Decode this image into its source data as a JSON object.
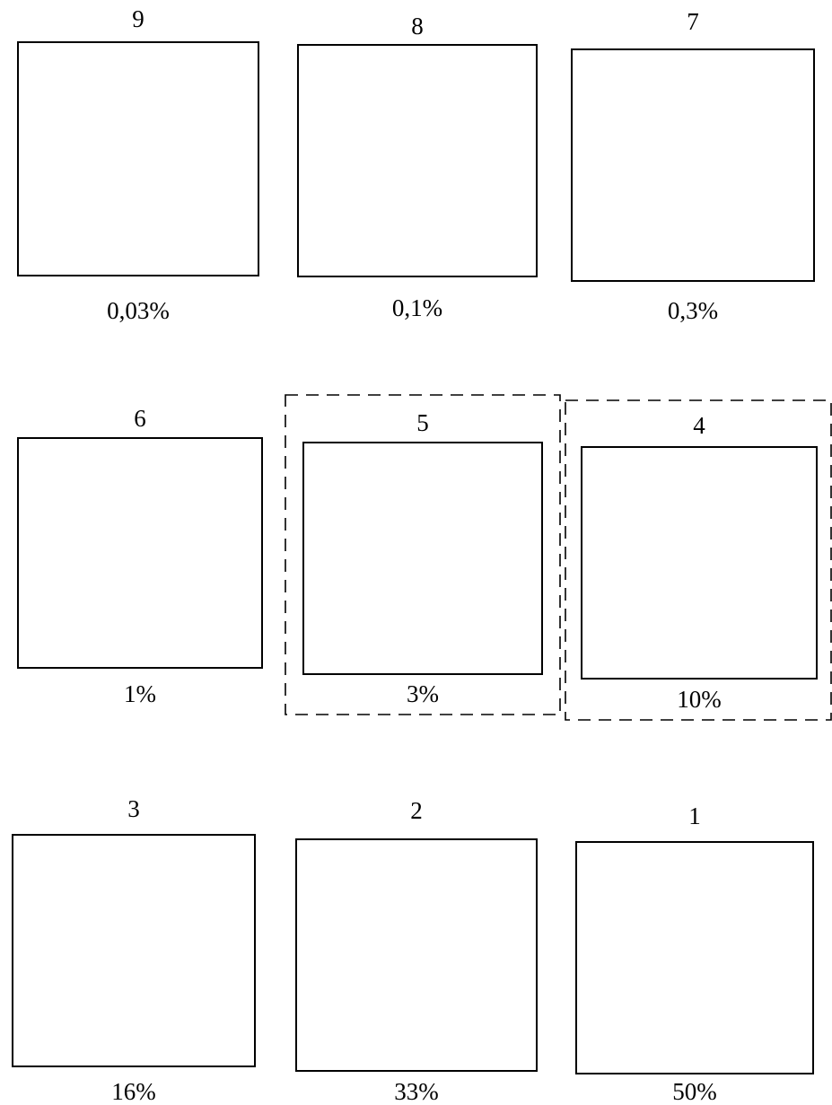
{
  "panels": [
    {
      "number": "9",
      "percent": "0,03%",
      "coverage": 0.0003
    },
    {
      "number": "8",
      "percent": "0,1%",
      "coverage": 0.001
    },
    {
      "number": "7",
      "percent": "0,3%",
      "coverage": 0.003
    },
    {
      "number": "6",
      "percent": "1%",
      "coverage": 0.01
    },
    {
      "number": "5",
      "percent": "3%",
      "coverage": 0.03,
      "highlighted": true
    },
    {
      "number": "4",
      "percent": "10%",
      "coverage": 0.1,
      "highlighted": true
    },
    {
      "number": "3",
      "percent": "16%",
      "coverage": 0.16
    },
    {
      "number": "2",
      "percent": "33%",
      "coverage": 0.33
    },
    {
      "number": "1",
      "percent": "50%",
      "coverage": 0.5
    }
  ],
  "colors": {
    "dot": "#000000",
    "background": "#ffffff",
    "frame": "#000000"
  }
}
